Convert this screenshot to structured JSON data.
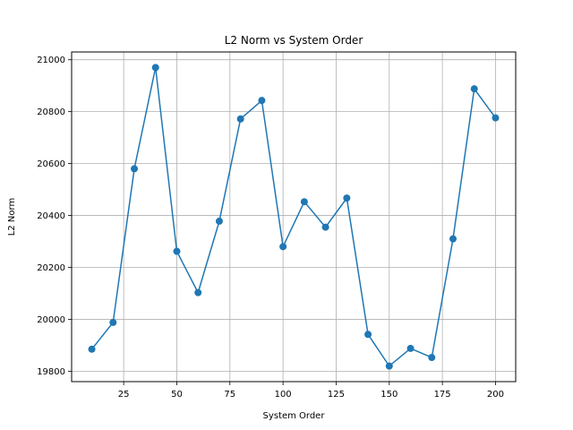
{
  "chart_data": {
    "type": "line",
    "title": "L2 Norm vs System Order",
    "xlabel": "System Order",
    "ylabel": "L2 Norm",
    "xlim": [
      0.5,
      209.5
    ],
    "ylim": [
      19760,
      21030
    ],
    "xticks": [
      25,
      50,
      75,
      100,
      125,
      150,
      175,
      200
    ],
    "yticks": [
      19800,
      20000,
      20200,
      20400,
      20600,
      20800,
      21000
    ],
    "grid": true,
    "color": "#1f77b4",
    "marker": "circle",
    "series": [
      {
        "x": [
          10,
          20,
          30,
          40,
          50,
          60,
          70,
          80,
          90,
          100,
          110,
          120,
          130,
          140,
          150,
          160,
          170,
          180,
          190,
          200
        ],
        "values": [
          19885,
          19988,
          20580,
          20970,
          20262,
          20103,
          20378,
          20772,
          20843,
          20280,
          20453,
          20355,
          20467,
          19942,
          19820,
          19888,
          19853,
          20310,
          20888,
          20776
        ]
      }
    ]
  }
}
